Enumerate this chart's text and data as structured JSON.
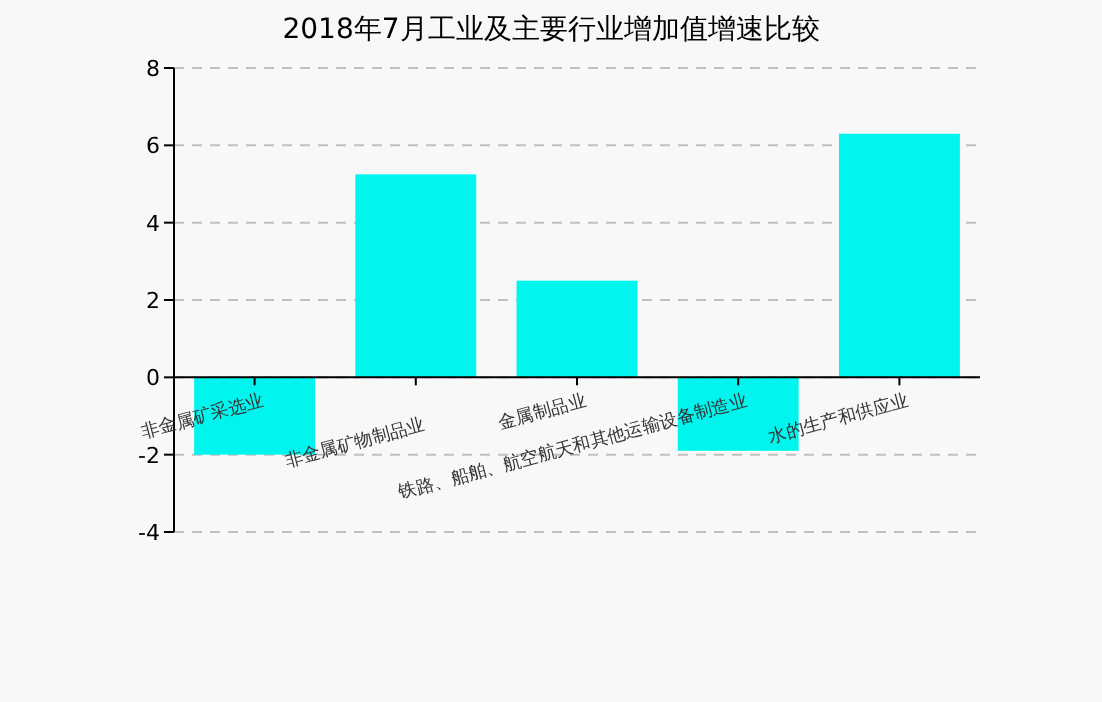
{
  "chart_data": {
    "type": "bar",
    "title": "2018年7月工业及主要行业增加值增速比较",
    "categories": [
      "非金属矿采选业",
      "非金属矿物制品业",
      "金属制品业",
      "铁路、船舶、航空航天和其他运输设备制造业",
      "水的生产和供应业"
    ],
    "values": [
      -2.0,
      5.25,
      2.5,
      -1.9,
      6.3
    ],
    "color": "#00f5ee",
    "ylim": [
      -4,
      8
    ],
    "yticks": [
      -4,
      -2,
      0,
      2,
      4,
      6,
      8
    ],
    "grid": "y"
  }
}
